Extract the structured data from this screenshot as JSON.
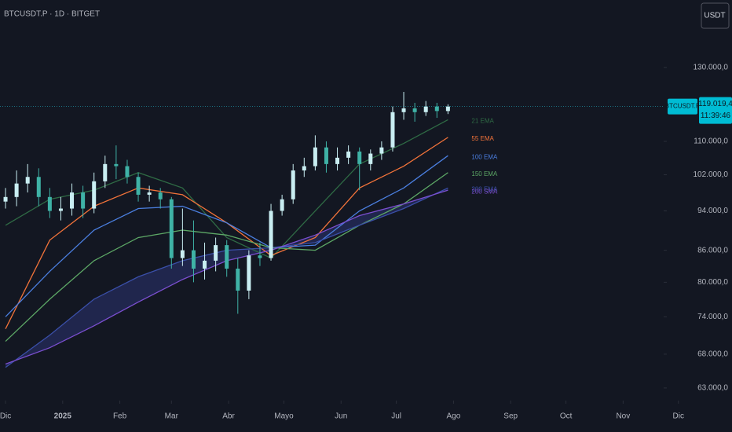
{
  "chart_data": {
    "type": "candlestick",
    "title": "BTCUSDT.P · 1D · BITGET",
    "currency_button": "USDT",
    "symbol_tag": "BTCUSDT.P",
    "countdown": "11:39:46",
    "last_price": {
      "value": 119019.4,
      "label": "119.019,4"
    },
    "up_color": "#c9eef2",
    "down_color": "#3fb2a6",
    "log_scale": true,
    "xlim": [
      -3,
      357
    ],
    "xticks": [
      {
        "value": 0,
        "label": "Dic"
      },
      {
        "value": 31,
        "label": "2025"
      },
      {
        "value": 62,
        "label": "Feb"
      },
      {
        "value": 90,
        "label": "Mar"
      },
      {
        "value": 121,
        "label": "Abr"
      },
      {
        "value": 151,
        "label": "Mayo"
      },
      {
        "value": 182,
        "label": "Jun"
      },
      {
        "value": 212,
        "label": "Jul"
      },
      {
        "value": 243,
        "label": "Ago"
      },
      {
        "value": 274,
        "label": "Sep"
      },
      {
        "value": 304,
        "label": "Oct"
      },
      {
        "value": 335,
        "label": "Nov"
      },
      {
        "value": 365,
        "label": "Dic"
      }
    ],
    "ylim": [
      61230,
      151400
    ],
    "yticks": [
      {
        "value": 63000,
        "label": "63.000,0"
      },
      {
        "value": 68000,
        "label": "68.000,0"
      },
      {
        "value": 74000,
        "label": "74.000,0"
      },
      {
        "value": 80000,
        "label": "80.000,0"
      },
      {
        "value": 86000,
        "label": "86.000,0"
      },
      {
        "value": 94000,
        "label": "94.000,0"
      },
      {
        "value": 102000,
        "label": "102.000,0"
      },
      {
        "value": 110000,
        "label": "110.000,0"
      },
      {
        "value": 130000,
        "label": "130.000,0"
      }
    ],
    "x": [
      0,
      6,
      12,
      18,
      24,
      30,
      36,
      42,
      48,
      54,
      60,
      66,
      72,
      78,
      84,
      90,
      96,
      102,
      108,
      114,
      120,
      126,
      132,
      138,
      144,
      150,
      156,
      162,
      168,
      174,
      180,
      186,
      192,
      198,
      204,
      210,
      216,
      222,
      228,
      234,
      240
    ],
    "open": [
      96000,
      97000,
      100000,
      101500,
      97000,
      94000,
      94500,
      98000,
      94500,
      100500,
      104500,
      104000,
      101500,
      97500,
      98000,
      96500,
      84500,
      86000,
      82500,
      84000,
      87000,
      82500,
      78500,
      85000,
      84500,
      94000,
      96500,
      103000,
      104000,
      108500,
      104500,
      106000,
      107500,
      104500,
      107000,
      108500,
      117500,
      118500,
      117500,
      119000,
      117800
    ],
    "high": [
      99000,
      103000,
      104500,
      103500,
      99000,
      97000,
      100000,
      99500,
      102500,
      106500,
      109000,
      105500,
      102500,
      99500,
      99000,
      97000,
      94500,
      92000,
      87500,
      88500,
      88000,
      84500,
      86000,
      87500,
      95500,
      97500,
      104500,
      106000,
      111500,
      110000,
      108500,
      109000,
      108500,
      108000,
      110000,
      119000,
      123000,
      120000,
      120500,
      120000,
      119600
    ],
    "low": [
      94500,
      95000,
      98000,
      95000,
      92500,
      92000,
      93000,
      92500,
      93500,
      99000,
      101000,
      100000,
      96000,
      96000,
      94500,
      82500,
      83000,
      80000,
      80500,
      82000,
      81000,
      74500,
      77000,
      83000,
      84000,
      93000,
      95500,
      101500,
      103000,
      102500,
      103000,
      104500,
      98500,
      103000,
      105500,
      107500,
      115500,
      115000,
      116500,
      116000,
      117000
    ],
    "close": [
      97000,
      100000,
      101500,
      97000,
      94000,
      94500,
      98000,
      94500,
      100500,
      104500,
      104000,
      101500,
      97500,
      98000,
      96500,
      84500,
      86000,
      82500,
      84000,
      87000,
      82500,
      78500,
      85000,
      84500,
      94000,
      96500,
      103000,
      104000,
      108500,
      104500,
      106000,
      107500,
      104500,
      107000,
      108500,
      117500,
      118500,
      117500,
      119000,
      117800,
      119019.4
    ],
    "series": [
      {
        "name": "21 EMA",
        "color": "#2f6b45",
        "x": [
          0,
          24,
          48,
          72,
          96,
          120,
          144,
          168,
          192,
          216,
          240
        ],
        "values": [
          91000,
          96500,
          98500,
          102500,
          99000,
          88500,
          84500,
          94000,
          104500,
          109500,
          115500
        ]
      },
      {
        "name": "55 EMA",
        "color": "#f2733a",
        "x": [
          0,
          24,
          48,
          72,
          96,
          120,
          144,
          168,
          192,
          216,
          240
        ],
        "values": [
          72000,
          88000,
          95000,
          99000,
          97500,
          91500,
          85000,
          88500,
          99000,
          104000,
          111000
        ]
      },
      {
        "name": "100 EMA",
        "color": "#4b7fe0",
        "x": [
          0,
          24,
          48,
          72,
          96,
          120,
          144,
          168,
          192,
          216,
          240
        ],
        "values": [
          74000,
          82000,
          90000,
          94500,
          95000,
          91500,
          86500,
          87000,
          94000,
          99000,
          106500
        ]
      },
      {
        "name": "150 EMA",
        "color": "#5da866",
        "x": [
          0,
          24,
          48,
          72,
          96,
          120,
          144,
          168,
          192,
          216,
          240
        ],
        "values": [
          70000,
          77000,
          84000,
          88500,
          90000,
          89000,
          86500,
          86000,
          91000,
          95500,
          102500
        ]
      },
      {
        "name": "200 EMA",
        "color": "#3a4fa8",
        "x": [
          0,
          24,
          48,
          72,
          96,
          120,
          144,
          168,
          192,
          216,
          240
        ],
        "values": [
          66000,
          71000,
          77000,
          81000,
          84000,
          86000,
          86500,
          87500,
          91000,
          94500,
          99000
        ]
      },
      {
        "name": "200 SMA",
        "color": "#7b4fd0",
        "fill": "rgba(70,80,190,0.28)",
        "fill_with": "200 EMA",
        "x": [
          0,
          24,
          48,
          72,
          96,
          120,
          144,
          168,
          192,
          216,
          240
        ],
        "values": [
          66500,
          69000,
          72500,
          76500,
          80500,
          84000,
          86000,
          89000,
          93000,
          95500,
          98500
        ]
      }
    ]
  }
}
